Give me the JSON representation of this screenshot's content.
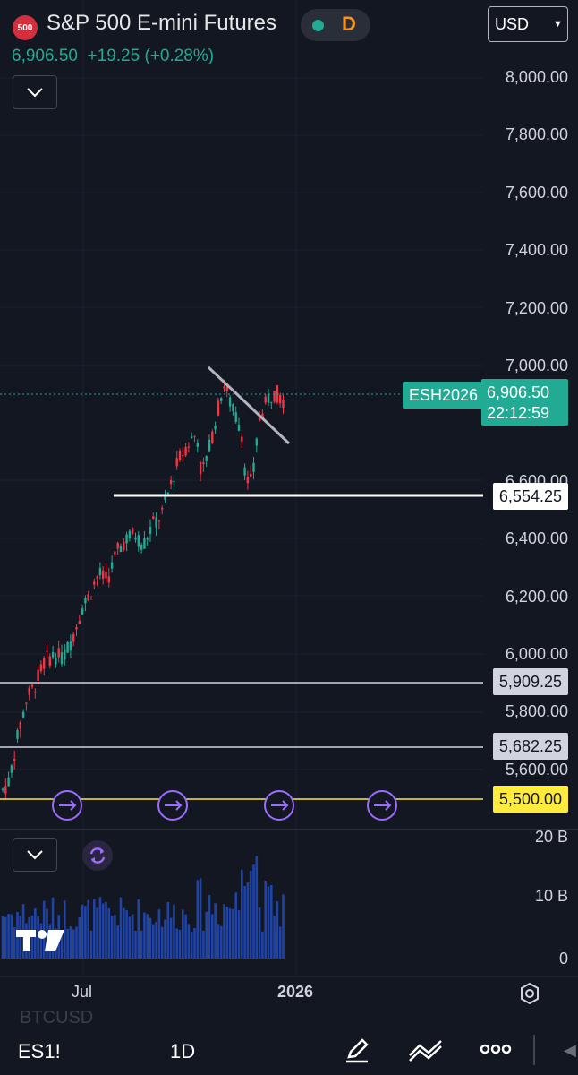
{
  "header": {
    "badge": "500",
    "title": "S&P 500 E-mini Futures",
    "exchange_letter": "D",
    "currency": "USD",
    "last_price": "6,906.50",
    "change": "+19.25 (+0.28%)"
  },
  "price_axis": [
    "8,000.00",
    "7,800.00",
    "7,600.00",
    "7,400.00",
    "7,200.00",
    "7,000.00",
    "6,600.00",
    "6,400.00",
    "6,200.00",
    "6,000.00",
    "5,800.00",
    "5,600.00"
  ],
  "price_labels_values": [
    8000,
    7800,
    7600,
    7400,
    7200,
    7000,
    6600,
    6400,
    6200,
    6000,
    5800,
    5600
  ],
  "volume_axis": [
    "20 B",
    "10 B",
    "0"
  ],
  "time_axis": [
    "Jul",
    "2026"
  ],
  "symbol_tag": "ESH2026",
  "current_price_tag": {
    "price": "6,906.50",
    "countdown": "22:12:59"
  },
  "horizontal_lines": [
    {
      "price": "6,554.25",
      "value": 6554.25,
      "color": "#ffffff"
    },
    {
      "price": "5,909.25",
      "value": 5909.25,
      "color": "#d1d4dc"
    },
    {
      "price": "5,682.25",
      "value": 5682.25,
      "color": "#d1d4dc"
    },
    {
      "price": "5,500.00",
      "value": 5500,
      "color": "#ffeb3b"
    }
  ],
  "colors": {
    "up": "#22ab94",
    "down": "#f23645",
    "background": "#131722",
    "volume": "#2962ff",
    "accent": "#9c6bff"
  },
  "bottom": {
    "symbol": "ES1!",
    "interval": "1D",
    "hidden_symbol": "BTCUSD"
  },
  "icons": [
    "settings-icon",
    "pencil-icon",
    "trend-line-icon",
    "more-icon"
  ]
}
